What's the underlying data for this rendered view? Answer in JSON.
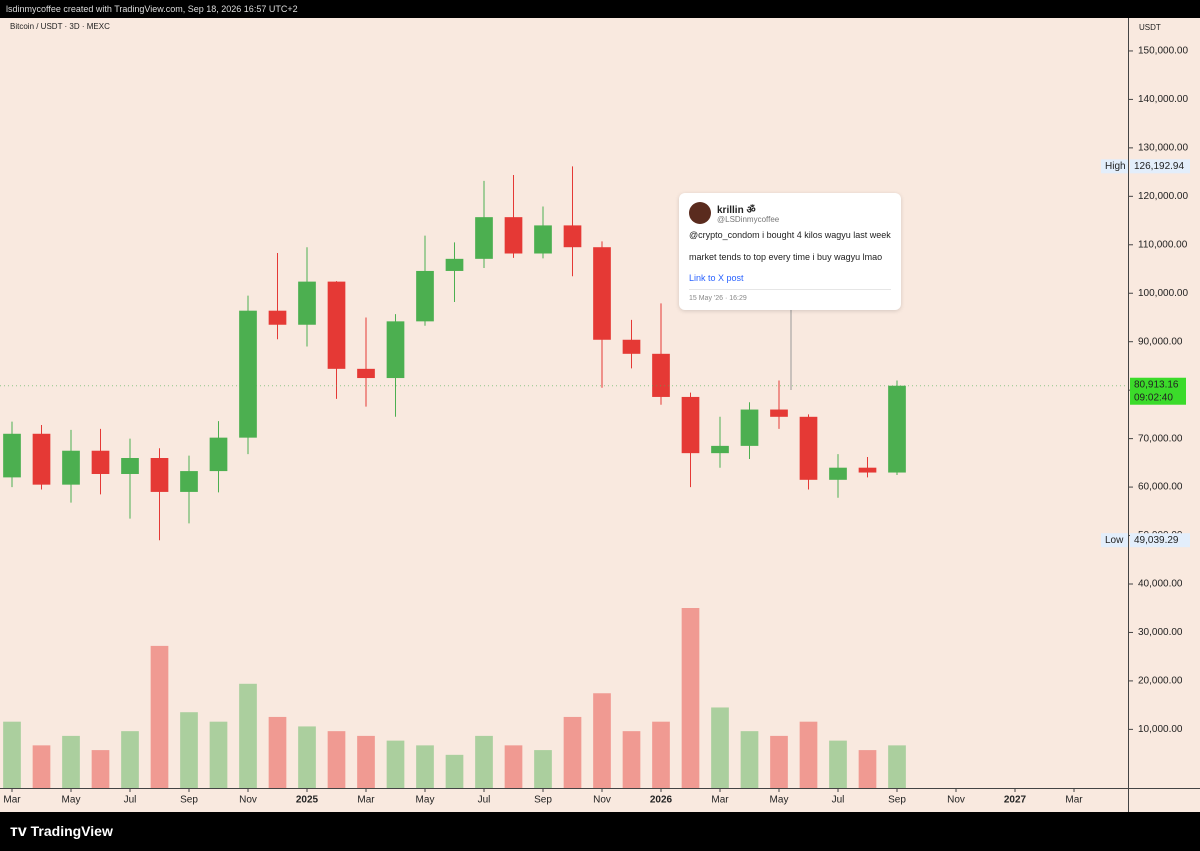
{
  "header": {
    "text": "lsdinmycoffee created with TradingView.com, Sep 18, 2026 16:57 UTC+2"
  },
  "footer": {
    "brand": "TradingView"
  },
  "chart_data": {
    "type": "candlestick",
    "title": "Bitcoin / USDT · 3D · MEXC",
    "y_axis_unit": "USDT",
    "up_color": "#4caf50",
    "down_color": "#e53935",
    "x": [
      "2024-03",
      "2024-04",
      "2024-05",
      "2024-06",
      "2024-07",
      "2024-08",
      "2024-09",
      "2024-10",
      "2024-11",
      "2024-12",
      "2025-01",
      "2025-02",
      "2025-03",
      "2025-04",
      "2025-05",
      "2025-06",
      "2025-07",
      "2025-08",
      "2025-09",
      "2025-10",
      "2025-11",
      "2025-12",
      "2026-01",
      "2026-02",
      "2026-03",
      "2026-04",
      "2026-05",
      "2026-06",
      "2026-07",
      "2026-08",
      "2026-09"
    ],
    "open": [
      62000,
      71000,
      60500,
      67500,
      62700,
      66000,
      59000,
      63300,
      70200,
      96400,
      93500,
      102400,
      84400,
      82500,
      94200,
      104600,
      107100,
      115700,
      108200,
      114000,
      109500,
      90400,
      87500,
      78600,
      67000,
      68500,
      76000,
      74500,
      61500,
      64000,
      63000
    ],
    "high": [
      73500,
      72800,
      71800,
      72000,
      70000,
      68000,
      66500,
      73600,
      99500,
      108300,
      109500,
      102500,
      95000,
      95700,
      111900,
      110500,
      123200,
      124400,
      117900,
      126192.94,
      110700,
      94500,
      97900,
      79500,
      74500,
      77500,
      82000,
      75000,
      66800,
      66200,
      82000
    ],
    "low": [
      60000,
      59500,
      56800,
      58500,
      53500,
      49039.29,
      52500,
      58900,
      66800,
      90500,
      89000,
      78200,
      76600,
      74500,
      93300,
      98200,
      105200,
      107300,
      107200,
      103500,
      80500,
      84500,
      77000,
      60000,
      64000,
      65800,
      72000,
      59500,
      57800,
      62000,
      62500
    ],
    "close": [
      71000,
      60500,
      67500,
      62700,
      66000,
      59000,
      63300,
      70200,
      96400,
      93500,
      102400,
      84400,
      82500,
      94200,
      104600,
      107100,
      115700,
      108200,
      114000,
      109500,
      90400,
      87500,
      78600,
      67000,
      68500,
      76000,
      74500,
      61500,
      64000,
      63000,
      80913.16
    ],
    "volume": [
      14000,
      9000,
      11000,
      8000,
      12000,
      30000,
      16000,
      14000,
      22000,
      15000,
      13000,
      12000,
      11000,
      10000,
      9000,
      7000,
      11000,
      9000,
      8000,
      15000,
      20000,
      12000,
      14000,
      38000,
      17000,
      12000,
      11000,
      14000,
      10000,
      8000,
      9000
    ],
    "ylim": [
      -2100,
      156800
    ],
    "yticks": [
      {
        "value": 10000,
        "label": "10,000.00"
      },
      {
        "value": 20000,
        "label": "20,000.00"
      },
      {
        "value": 30000,
        "label": "30,000.00"
      },
      {
        "value": 40000,
        "label": "40,000.00"
      },
      {
        "value": 50000,
        "label": "50,000.00"
      },
      {
        "value": 60000,
        "label": "60,000.00"
      },
      {
        "value": 70000,
        "label": "70,000.00"
      },
      {
        "value": 80000,
        "label": "80,000.00"
      },
      {
        "value": 90000,
        "label": "90,000.00"
      },
      {
        "value": 100000,
        "label": "100,000.00"
      },
      {
        "value": 110000,
        "label": "110,000.00"
      },
      {
        "value": 120000,
        "label": "120,000.00"
      },
      {
        "value": 130000,
        "label": "130,000.00"
      },
      {
        "value": 140000,
        "label": "140,000.00"
      },
      {
        "value": 150000,
        "label": "150,000.00"
      }
    ],
    "xlim": [
      "2024-03",
      "2027-03"
    ],
    "xticks": [
      {
        "value": "2024-03",
        "label": "Mar"
      },
      {
        "value": "2024-05",
        "label": "May"
      },
      {
        "value": "2024-07",
        "label": "Jul"
      },
      {
        "value": "2024-09",
        "label": "Sep"
      },
      {
        "value": "2024-11",
        "label": "Nov"
      },
      {
        "value": "2025-01",
        "label": "2025"
      },
      {
        "value": "2025-03",
        "label": "Mar"
      },
      {
        "value": "2025-05",
        "label": "May"
      },
      {
        "value": "2025-07",
        "label": "Jul"
      },
      {
        "value": "2025-09",
        "label": "Sep"
      },
      {
        "value": "2025-11",
        "label": "Nov"
      },
      {
        "value": "2026-01",
        "label": "2026"
      },
      {
        "value": "2026-03",
        "label": "Mar"
      },
      {
        "value": "2026-05",
        "label": "May"
      },
      {
        "value": "2026-07",
        "label": "Jul"
      },
      {
        "value": "2026-09",
        "label": "Sep"
      },
      {
        "value": "2026-11",
        "label": "Nov"
      },
      {
        "value": "2027-01",
        "label": "2027"
      },
      {
        "value": "2027-03",
        "label": "Mar"
      }
    ],
    "markers": [
      {
        "label": "High",
        "value": 126192.94,
        "value_label": "126,192.94"
      },
      {
        "label": "Low",
        "value": 49039.29,
        "value_label": "49,039.29"
      }
    ],
    "last": {
      "value": 80913.16,
      "value_label": "80,913.16",
      "countdown": "09:02:40"
    }
  },
  "post": {
    "author": "krillin ॐ",
    "handle": "@LSDinmycoffee",
    "lines": [
      "@crypto_condom i bought 4 kilos wagyu last week",
      "market tends to top every time i buy wagyu lmao"
    ],
    "link": "Link to X post",
    "timestamp": "15 May '26 · 16:29"
  }
}
